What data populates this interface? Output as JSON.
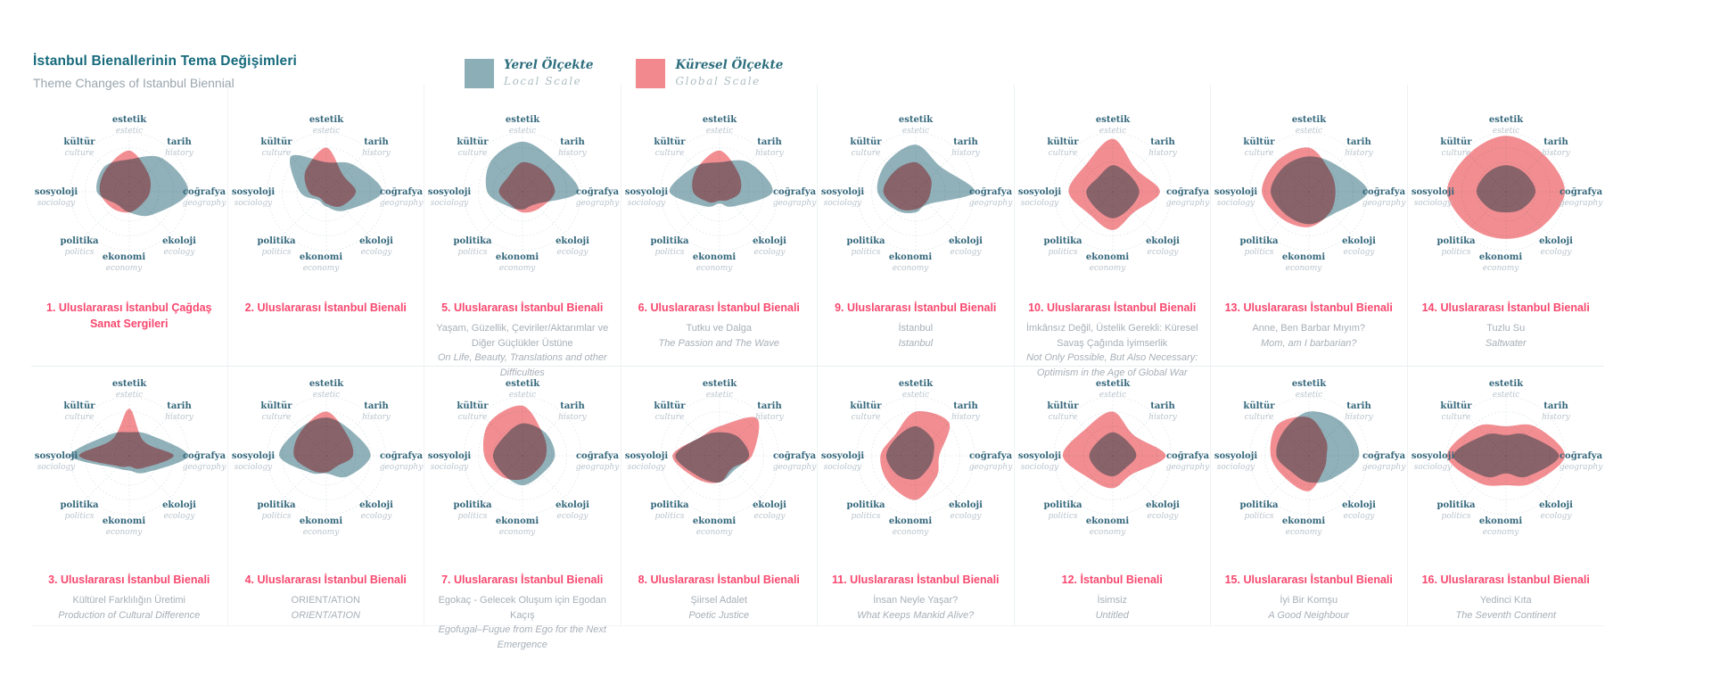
{
  "header": {
    "title_tr": "İstanbul Bienallerinin Tema Değişimleri",
    "title_en": "Theme Changes of Istanbul Biennial"
  },
  "legend": {
    "items": [
      {
        "key": "local",
        "label_tr": "Yerel Ölçekte",
        "label_en": "Local Scale",
        "color": "#8CAEB6"
      },
      {
        "key": "global",
        "label_tr": "Küresel Ölçekte",
        "label_en": "Global Scale",
        "color": "#F2898E"
      }
    ]
  },
  "colors": {
    "local_blob": "#8CAEB6",
    "global_blob": "#F2898E",
    "caption_title": "#F8486E",
    "caption_subtitle": "#A7AFB7",
    "axis_label_tr": "#35687C",
    "axis_label_en": "#BAC4CC",
    "header_title": "#15697B",
    "header_subtitle": "#9AA6AE",
    "grid_line": "#E3E9EC"
  },
  "chart_data": {
    "type": "radar",
    "note": "16 radar-blob charts; per-axis reach estimated 0-1 of outer ring (4 rings). Series: local = Yerel Ölçekte (teal), global = Küresel Ölçekte (pink).",
    "axis_order": [
      "estetik",
      "tarih",
      "coğrafya",
      "ekoloji",
      "ekonomi",
      "politika",
      "sosyoloji",
      "kültür"
    ],
    "axes": [
      {
        "tr": "estetik",
        "en": "estetic"
      },
      {
        "tr": "tarih",
        "en": "history"
      },
      {
        "tr": "coğrafya",
        "en": "geography"
      },
      {
        "tr": "ekoloji",
        "en": "ecology"
      },
      {
        "tr": "ekonomi",
        "en": "economy"
      },
      {
        "tr": "politika",
        "en": "politics"
      },
      {
        "tr": "sosyoloji",
        "en": "sociology"
      },
      {
        "tr": "kültür",
        "en": "culture"
      }
    ],
    "series_names": {
      "local": "Yerel Ölçekte / Local Scale",
      "global": "Küresel Ölçekte / Global Scale"
    },
    "charts": [
      {
        "row": 1,
        "col": 1,
        "title": "1. Uluslararası İstanbul Çağdaş Sanat Sergileri",
        "subtitle_tr": "",
        "subtitle_en": "",
        "local": [
          0.55,
          0.8,
          1.0,
          0.55,
          0.35,
          0.3,
          0.55,
          0.6
        ],
        "global": [
          0.7,
          0.45,
          0.35,
          0.3,
          0.35,
          0.4,
          0.5,
          0.55
        ]
      },
      {
        "row": 1,
        "col": 2,
        "title": "2. Uluslararası İstanbul Bienali",
        "subtitle_tr": "",
        "subtitle_en": "",
        "local": [
          0.5,
          0.65,
          0.95,
          0.45,
          0.25,
          0.2,
          0.45,
          0.85
        ],
        "global": [
          0.75,
          0.4,
          0.5,
          0.35,
          0.2,
          0.15,
          0.3,
          0.5
        ]
      },
      {
        "row": 1,
        "col": 3,
        "title": "5. Uluslararası İstanbul Bienali",
        "subtitle_tr": "Yaşam, Güzellik, Çeviriler/Aktarımlar ve Diğer Güçlükler Üstüne",
        "subtitle_en": "On Life, Beauty, Translations and other Difficulties",
        "local": [
          0.85,
          0.75,
          0.95,
          0.3,
          0.3,
          0.35,
          0.6,
          0.75
        ],
        "global": [
          0.5,
          0.5,
          0.55,
          0.4,
          0.35,
          0.3,
          0.4,
          0.35
        ]
      },
      {
        "row": 1,
        "col": 4,
        "title": "6. Uluslararası İstanbul Bienali",
        "subtitle_tr": "Tutku ve Dalga",
        "subtitle_en": "The Passion and The Wave",
        "local": [
          0.5,
          0.7,
          0.9,
          0.35,
          0.2,
          0.35,
          0.85,
          0.6
        ],
        "global": [
          0.7,
          0.45,
          0.35,
          0.2,
          0.15,
          0.25,
          0.45,
          0.55
        ]
      },
      {
        "row": 1,
        "col": 5,
        "title": "9. Uluslararası İstanbul Bienali",
        "subtitle_tr": "İstanbul",
        "subtitle_en": "Istanbul",
        "local": [
          0.8,
          0.6,
          1.0,
          0.3,
          0.35,
          0.45,
          0.65,
          0.7
        ],
        "global": [
          0.5,
          0.35,
          0.25,
          0.25,
          0.3,
          0.4,
          0.55,
          0.5
        ]
      },
      {
        "row": 1,
        "col": 6,
        "title": "10. Uluslararası İstanbul Bienali",
        "subtitle_tr": "İmkânsız Değil, Üstelik Gerekli: Küresel Savaş Çağında İyimserlik",
        "subtitle_en": "Not Only Possible, But Also Necessary: Optimism in the Age of Global War",
        "local": [
          0.45,
          0.4,
          0.45,
          0.4,
          0.45,
          0.4,
          0.45,
          0.35
        ],
        "global": [
          0.9,
          0.55,
          0.8,
          0.5,
          0.65,
          0.55,
          0.75,
          0.65
        ]
      },
      {
        "row": 1,
        "col": 7,
        "title": "13. Uluslararası İstanbul Bienali",
        "subtitle_tr": "Anne, Ben Barbar Mıyım?",
        "subtitle_en": "Mom, am I barbarian?",
        "local": [
          0.6,
          0.65,
          1.0,
          0.55,
          0.55,
          0.55,
          0.65,
          0.6
        ],
        "global": [
          0.75,
          0.5,
          0.45,
          0.5,
          0.6,
          0.65,
          0.8,
          0.75
        ]
      },
      {
        "row": 1,
        "col": 8,
        "title": "14. Uluslararası İstanbul Bienali",
        "subtitle_tr": "Tuzlu Su",
        "subtitle_en": "Saltwater",
        "local": [
          0.45,
          0.45,
          0.5,
          0.4,
          0.35,
          0.4,
          0.5,
          0.45
        ],
        "global": [
          0.95,
          0.9,
          1.0,
          0.85,
          0.8,
          0.85,
          1.0,
          0.9
        ]
      },
      {
        "row": 2,
        "col": 1,
        "title": "3. Uluslararası İstanbul Bienali",
        "subtitle_tr": "Kültürel Farklılığın Üretimi",
        "subtitle_en": "Production of Cultural Difference",
        "local": [
          0.4,
          0.5,
          1.0,
          0.4,
          0.25,
          0.3,
          1.0,
          0.5
        ],
        "global": [
          0.8,
          0.35,
          0.75,
          0.3,
          0.18,
          0.25,
          0.85,
          0.4
        ]
      },
      {
        "row": 2,
        "col": 2,
        "title": "4. Uluslararası İstanbul Bienali",
        "subtitle_tr": "ORIENT/ATION",
        "subtitle_en": "ORIENT/ATION",
        "local": [
          0.65,
          0.6,
          0.75,
          0.5,
          0.3,
          0.4,
          0.8,
          0.65
        ],
        "global": [
          0.75,
          0.5,
          0.45,
          0.25,
          0.28,
          0.35,
          0.55,
          0.6
        ]
      },
      {
        "row": 2,
        "col": 3,
        "title": "7. Uluslararası İstanbul Bienali",
        "subtitle_tr": "Egokaç - Gelecek Oluşum için Egodan Kaçış",
        "subtitle_en": "Egofugal–Fugue from Ego for the Next Emergence",
        "local": [
          0.55,
          0.55,
          0.55,
          0.45,
          0.5,
          0.45,
          0.5,
          0.45
        ],
        "global": [
          0.85,
          0.5,
          0.4,
          0.35,
          0.4,
          0.5,
          0.65,
          0.8
        ]
      },
      {
        "row": 2,
        "col": 4,
        "title": "8. Uluslararası İstanbul Bienali",
        "subtitle_tr": "Şiirsel Adalet",
        "subtitle_en": "Poetic Justice",
        "local": [
          0.4,
          0.45,
          0.5,
          0.35,
          0.45,
          0.5,
          0.75,
          0.45
        ],
        "global": [
          0.5,
          0.9,
          0.55,
          0.3,
          0.45,
          0.55,
          0.8,
          0.45
        ]
      },
      {
        "row": 2,
        "col": 5,
        "title": "11. Uluslararası İstanbul Bienali",
        "subtitle_tr": "İnsan Neyle Yaşar?",
        "subtitle_en": "What Keeps Mankid Alive?",
        "local": [
          0.5,
          0.4,
          0.3,
          0.3,
          0.4,
          0.45,
          0.5,
          0.45
        ],
        "global": [
          0.75,
          0.8,
          0.4,
          0.5,
          0.75,
          0.65,
          0.6,
          0.5
        ]
      },
      {
        "row": 2,
        "col": 6,
        "title": "12. İstanbul Bienali",
        "subtitle_tr": "İsimsiz",
        "subtitle_en": "Untitled",
        "local": [
          0.4,
          0.35,
          0.4,
          0.3,
          0.35,
          0.35,
          0.4,
          0.35
        ],
        "global": [
          0.75,
          0.5,
          0.9,
          0.45,
          0.55,
          0.55,
          0.85,
          0.65
        ]
      },
      {
        "row": 2,
        "col": 7,
        "title": "15. Uluslararası İstanbul Bienali",
        "subtitle_tr": "İyi Bir Komşu",
        "subtitle_en": "A Good Neighbour",
        "local": [
          0.75,
          0.8,
          0.85,
          0.55,
          0.45,
          0.4,
          0.55,
          0.6
        ],
        "global": [
          0.65,
          0.4,
          0.3,
          0.35,
          0.6,
          0.55,
          0.65,
          0.75
        ]
      },
      {
        "row": 2,
        "col": 8,
        "title": "16. Uluslararası İstanbul Bienali",
        "subtitle_tr": "Yedinci Kıta",
        "subtitle_en": "The Seventh Continent",
        "local": [
          0.35,
          0.5,
          0.9,
          0.5,
          0.3,
          0.5,
          0.9,
          0.5
        ],
        "global": [
          0.5,
          0.7,
          1.0,
          0.65,
          0.5,
          0.65,
          1.0,
          0.7
        ]
      }
    ]
  }
}
